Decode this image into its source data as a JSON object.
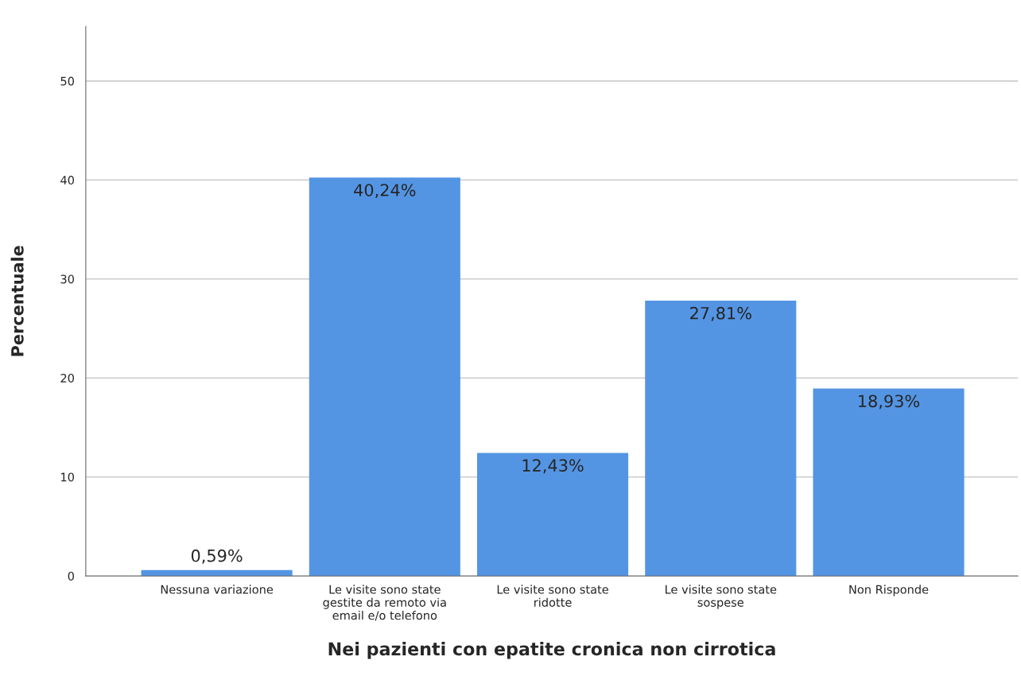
{
  "chart_data": {
    "type": "bar",
    "xlabel": "Nei pazienti con epatite cronica non cirrotica",
    "ylabel": "Percentuale",
    "categories": [
      "Nessuna variazione",
      "Le visite sono state\ngestite da remoto via\nemail e/o telefono",
      "Le visite sono state\nridotte",
      "Le visite sono state\nsospese",
      "Non Risponde"
    ],
    "values": [
      0.59,
      40.24,
      12.43,
      27.81,
      18.93
    ],
    "value_labels": [
      "0,59%",
      "40,24%",
      "12,43%",
      "27,81%",
      "18,93%"
    ],
    "color": "#5495e3",
    "ylim": [
      0,
      55.5
    ],
    "yticks": [
      0,
      10,
      20,
      30,
      40,
      50
    ],
    "grid": "y"
  }
}
